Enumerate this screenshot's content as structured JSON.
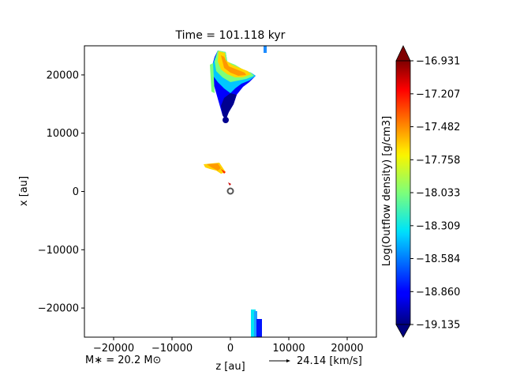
{
  "chart_data": {
    "type": "heatmap",
    "title": "Time = 101.118 kyr",
    "xlabel": "z [au]",
    "ylabel": "x [au]",
    "xlim": [
      -25000,
      25000
    ],
    "ylim": [
      -25000,
      25000
    ],
    "xticks": [
      -20000,
      -10000,
      0,
      10000,
      20000
    ],
    "yticks": [
      -20000,
      -10000,
      0,
      10000,
      20000
    ],
    "xtick_labels": [
      "−20000",
      "−10000",
      "0",
      "10000",
      "20000"
    ],
    "ytick_labels": [
      "−20000",
      "−10000",
      "0",
      "10000",
      "20000"
    ],
    "grid": false,
    "colorbar": {
      "label": "Log(Outflow density) [g/cm3]",
      "min": -19.135,
      "max": -16.931,
      "colormap": "jet",
      "extend": "both",
      "ticks": [
        -16.931,
        -17.207,
        -17.482,
        -17.758,
        -18.033,
        -18.309,
        -18.584,
        -18.86,
        -19.135
      ],
      "tick_labels": [
        "−16.931",
        "−17.207",
        "−17.482",
        "−17.758",
        "−18.033",
        "−18.309",
        "−18.584",
        "−18.860",
        "−19.135"
      ]
    },
    "regions": [
      {
        "name": "upper-outflow-lobe",
        "z_range": [
          -3200,
          4500
        ],
        "x_range": [
          12000,
          23500
        ],
        "value_range": [
          -19.1,
          -17.3
        ]
      },
      {
        "name": "middle-clump",
        "z_range": [
          -4500,
          -1000
        ],
        "x_range": [
          2800,
          4800
        ],
        "value_range": [
          -17.7,
          -17.1
        ]
      },
      {
        "name": "top-edge-strip",
        "z_range": [
          5600,
          6000
        ],
        "x_range": [
          23500,
          24800
        ],
        "value_range": [
          -18.5,
          -18.3
        ]
      },
      {
        "name": "bottom-outflow-strip",
        "z_range": [
          3600,
          5400
        ],
        "x_range": [
          -25000,
          -20000
        ],
        "value_range": [
          -18.9,
          -18.2
        ]
      }
    ],
    "sink": {
      "z": 0,
      "x": 0,
      "label": "M$_*$ = 20.2 M$_\\odot$"
    },
    "annotations": {
      "mass": "M∗ = 20.2 M⊙",
      "arrow_label": "24.14 [km/s]"
    }
  }
}
